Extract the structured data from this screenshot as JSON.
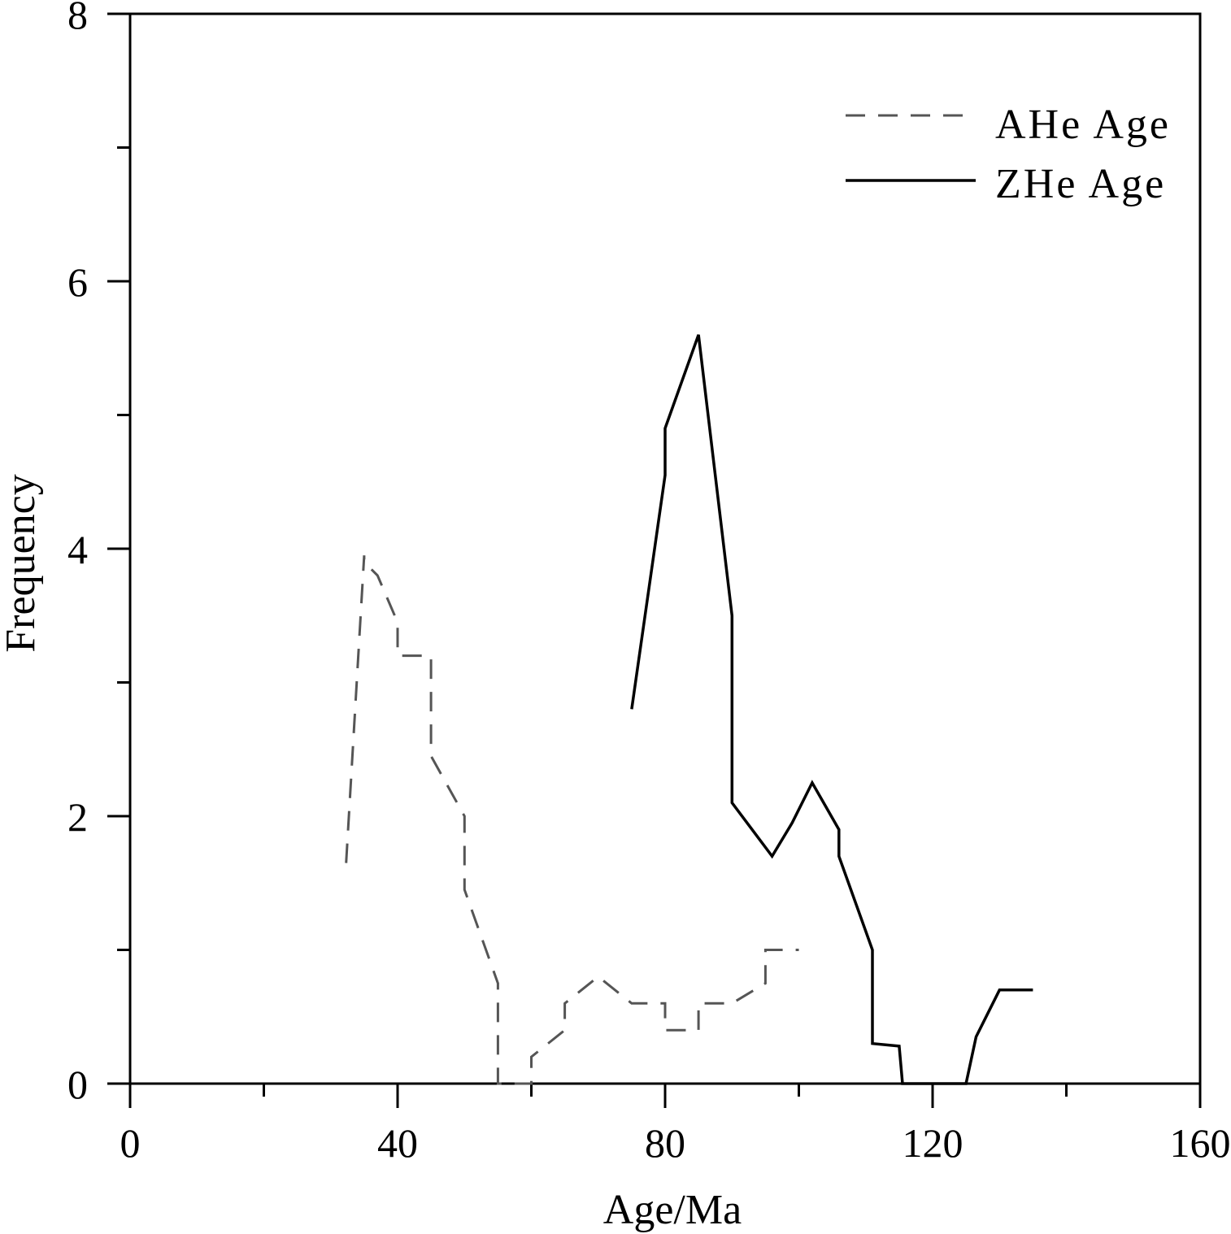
{
  "chart_data": {
    "type": "line",
    "title": "",
    "xlabel": "Age/Ma",
    "ylabel": "Frequency",
    "xlim": [
      0,
      160
    ],
    "ylim": [
      0,
      8
    ],
    "xticks": [
      0,
      40,
      80,
      120,
      160
    ],
    "xtick_labels": [
      "0",
      "40",
      "80",
      "120",
      "160"
    ],
    "yticks": [
      0,
      2,
      4,
      6,
      8
    ],
    "ytick_labels": [
      "0",
      "2",
      "4",
      "6",
      "8"
    ],
    "grid": false,
    "legend_position": "top-right",
    "series": [
      {
        "name": "AHe Age",
        "style": "dashed",
        "color": "#555555",
        "x": [
          32.3,
          35,
          35,
          37,
          40,
          40,
          45,
          45,
          50,
          50,
          55,
          55,
          60,
          60,
          65,
          65,
          70,
          75,
          80,
          80,
          85,
          85,
          90,
          95,
          95,
          100
        ],
        "y": [
          1.65,
          3.95,
          3.9,
          3.8,
          3.45,
          3.2,
          3.2,
          2.45,
          2.0,
          1.45,
          0.75,
          0,
          0,
          0.2,
          0.4,
          0.6,
          0.8,
          0.6,
          0.6,
          0.4,
          0.4,
          0.6,
          0.6,
          0.75,
          1.0,
          1.0
        ]
      },
      {
        "name": "ZHe Age",
        "style": "solid",
        "color": "#000000",
        "x": [
          75,
          80,
          80,
          85,
          90,
          90,
          96,
          99,
          102,
          106,
          106,
          111,
          111,
          115,
          115.5,
          125,
          126.5,
          130,
          135
        ],
        "y": [
          2.8,
          4.55,
          4.9,
          5.6,
          3.5,
          2.1,
          1.7,
          1.95,
          2.25,
          1.9,
          1.7,
          1.0,
          0.3,
          0.28,
          0,
          0,
          0.35,
          0.7,
          0.7
        ]
      }
    ]
  }
}
